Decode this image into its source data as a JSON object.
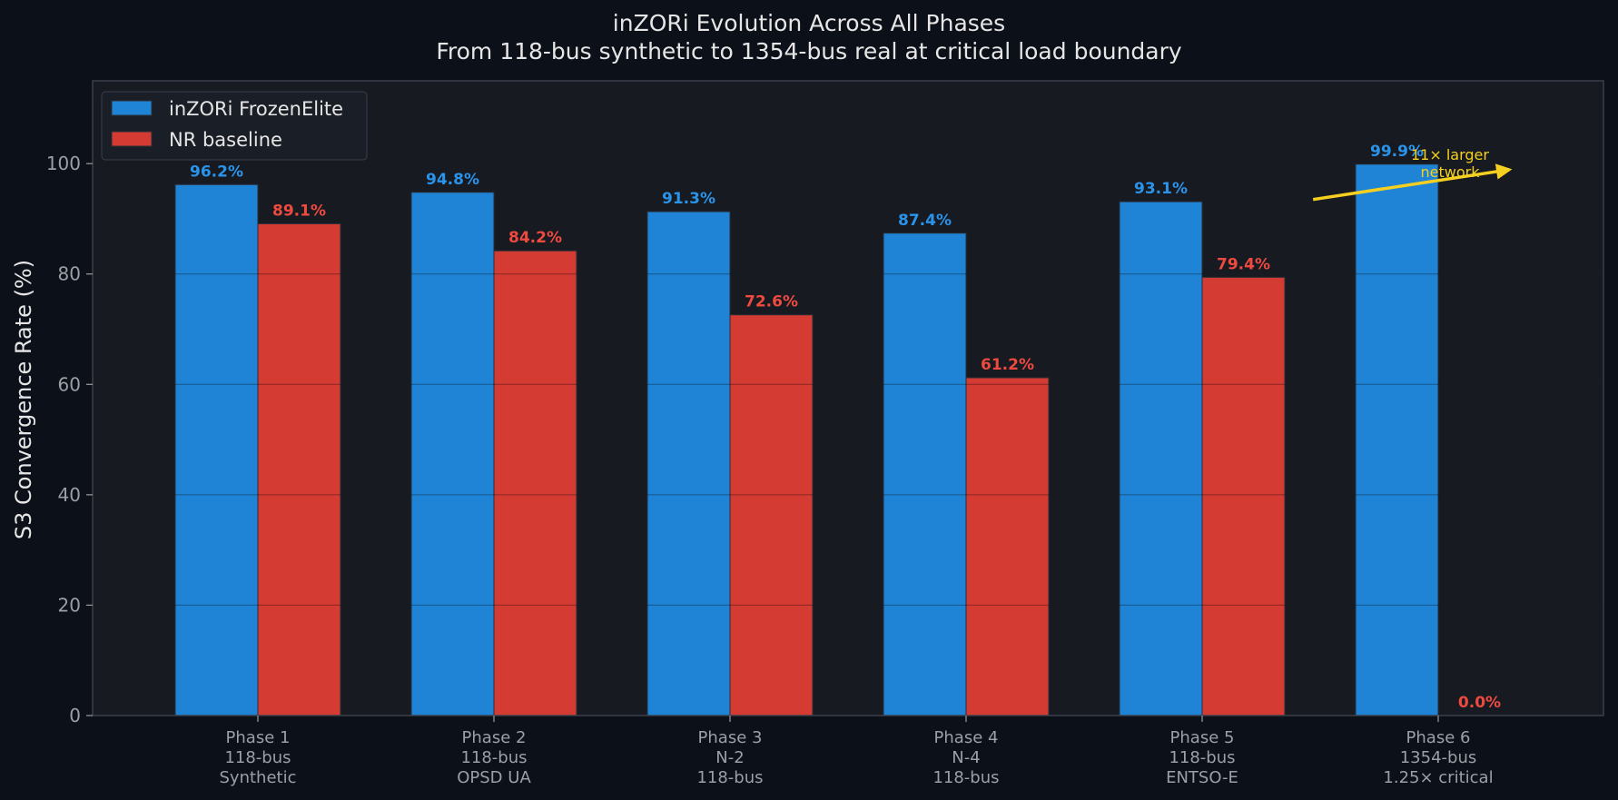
{
  "colors": {
    "background": "#0c1018",
    "plot_bg": "#171a21",
    "frame": "#3a3f4a",
    "grid": "#262a33",
    "title": "#e6e6e6",
    "axis_label": "#e6e6e6",
    "tick": "#9aa0a6",
    "series1": "#1f84d6",
    "series1_label": "#2a93ea",
    "series2": "#d33b33",
    "series2_label": "#ee4a3f",
    "annotation": "#f5d020"
  },
  "chart_data": {
    "type": "bar",
    "title_line1": "inZORi Evolution Across All Phases",
    "title_line2": "From 118-bus synthetic to 1354-bus real at critical load boundary",
    "xlabel": "",
    "ylabel": "S3 Convergence Rate (%)",
    "ylim": [
      0,
      115
    ],
    "yticks": [
      0,
      20,
      40,
      60,
      80,
      100
    ],
    "grid": true,
    "legend_position": "top-left",
    "categories": [
      [
        "Phase 1",
        "118-bus",
        "Synthetic"
      ],
      [
        "Phase 2",
        "118-bus",
        "OPSD UA"
      ],
      [
        "Phase 3",
        "N-2",
        "118-bus"
      ],
      [
        "Phase 4",
        "N-4",
        "118-bus"
      ],
      [
        "Phase 5",
        "118-bus",
        "ENTSO-E"
      ],
      [
        "Phase 6",
        "1354-bus",
        "1.25× critical"
      ]
    ],
    "series": [
      {
        "name": "inZORi FrozenElite",
        "values": [
          96.2,
          94.8,
          91.3,
          87.4,
          93.1,
          99.9
        ],
        "labels": [
          "96.2%",
          "94.8%",
          "91.3%",
          "87.4%",
          "93.1%",
          "99.9%"
        ]
      },
      {
        "name": "NR baseline",
        "values": [
          89.1,
          84.2,
          72.6,
          61.2,
          79.4,
          0.0
        ],
        "labels": [
          "89.1%",
          "84.2%",
          "72.6%",
          "61.2%",
          "79.4%",
          "0.0%"
        ]
      }
    ],
    "annotation": {
      "line1": "11× larger",
      "line2": "network",
      "arrow_from": [
        4.47,
        93.5
      ],
      "arrow_to": [
        5.3,
        98.9
      ],
      "text_at": [
        5.05,
        99.5
      ]
    }
  }
}
